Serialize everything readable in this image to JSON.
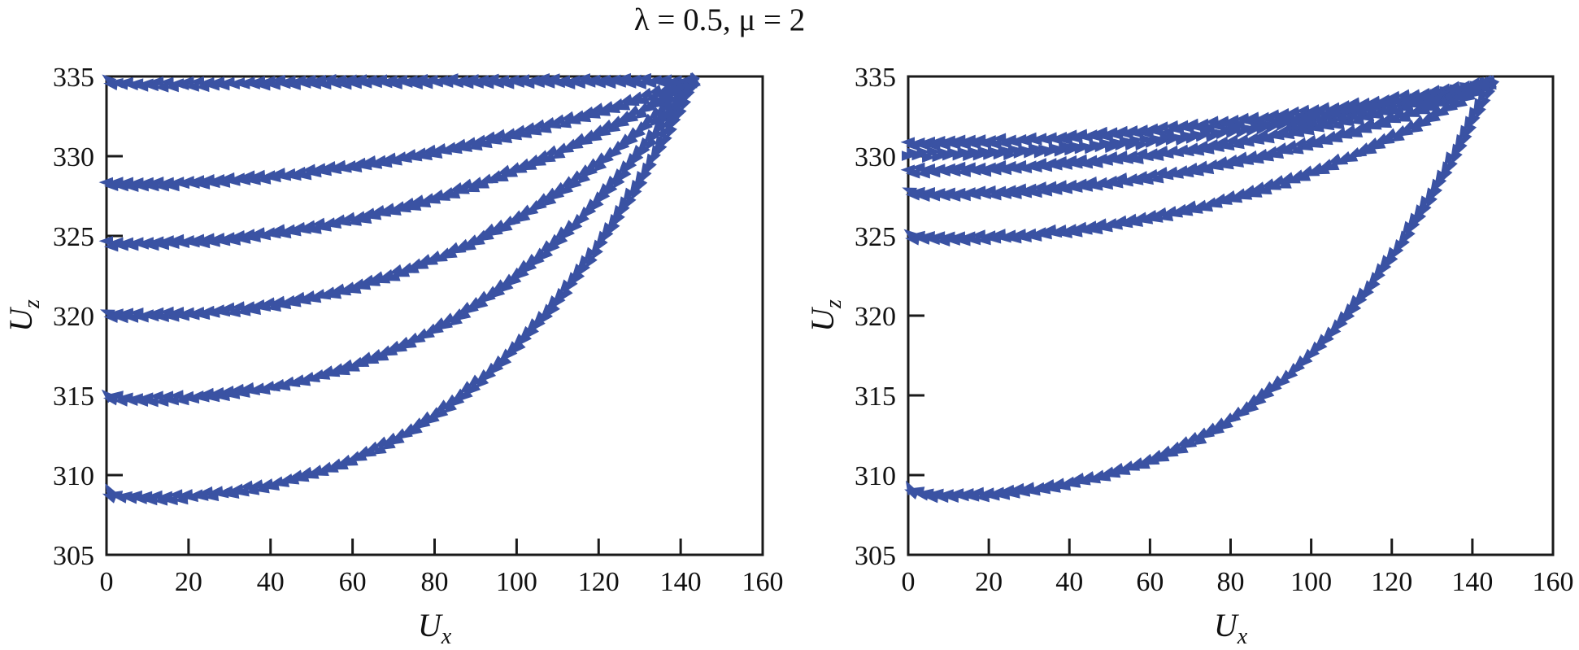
{
  "chart_data": {
    "type": "line",
    "title": "λ = 0.5, μ = 2",
    "marker_color": "#3A52A3",
    "axis_color": "#1a1a1a",
    "text_color": "#111111",
    "legend": "none",
    "grid": false,
    "subplots": [
      {
        "name": "left",
        "xlabel": {
          "base": "U",
          "sub": "x"
        },
        "ylabel": {
          "base": "U",
          "sub": "z"
        },
        "xlim": [
          0,
          160
        ],
        "ylim": [
          305,
          335
        ],
        "xticks": [
          0,
          20,
          40,
          60,
          80,
          100,
          120,
          140,
          160
        ],
        "yticks": [
          305,
          310,
          315,
          320,
          325,
          330,
          335
        ],
        "convergence_point": {
          "x": 143,
          "z": 334.7
        },
        "series": [
          {
            "start_z": 334.7,
            "shape_exp": 1.0,
            "dip": 0.2,
            "direction": "left"
          },
          {
            "start_z": 328.2,
            "shape_exp": 2.0,
            "dip": 0.0,
            "direction": "left"
          },
          {
            "start_z": 324.5,
            "shape_exp": 2.2,
            "dip": 0.0,
            "direction": "left"
          },
          {
            "start_z": 320.1,
            "shape_exp": 2.5,
            "dip": 0.1,
            "direction": "left"
          },
          {
            "start_z": 315.0,
            "shape_exp": 2.7,
            "dip": 0.25,
            "direction": "left"
          },
          {
            "start_z": 309.0,
            "shape_exp": 2.9,
            "dip": 0.45,
            "direction": "left"
          }
        ]
      },
      {
        "name": "right",
        "xlabel": {
          "base": "U",
          "sub": "x"
        },
        "ylabel": {
          "base": "U",
          "sub": "z"
        },
        "xlim": [
          0,
          160
        ],
        "ylim": [
          305,
          335
        ],
        "xticks": [
          0,
          20,
          40,
          60,
          80,
          100,
          120,
          140,
          160
        ],
        "yticks": [
          305,
          310,
          315,
          320,
          325,
          330,
          335
        ],
        "convergence_point": {
          "x": 144.5,
          "z": 334.6
        },
        "series": [
          {
            "start_z": 330.8,
            "shape_exp": 1.8,
            "dip": 0.0,
            "direction": "left"
          },
          {
            "start_z": 330.1,
            "shape_exp": 1.9,
            "dip": 0.0,
            "direction": "right"
          },
          {
            "start_z": 329.1,
            "shape_exp": 2.0,
            "dip": 0.0,
            "direction": "left"
          },
          {
            "start_z": 327.7,
            "shape_exp": 2.2,
            "dip": 0.1,
            "direction": "left"
          },
          {
            "start_z": 325.0,
            "shape_exp": 2.4,
            "dip": 0.2,
            "direction": "left"
          },
          {
            "start_z": 309.2,
            "shape_exp": 3.0,
            "dip": 0.5,
            "direction": "left"
          }
        ]
      }
    ]
  }
}
